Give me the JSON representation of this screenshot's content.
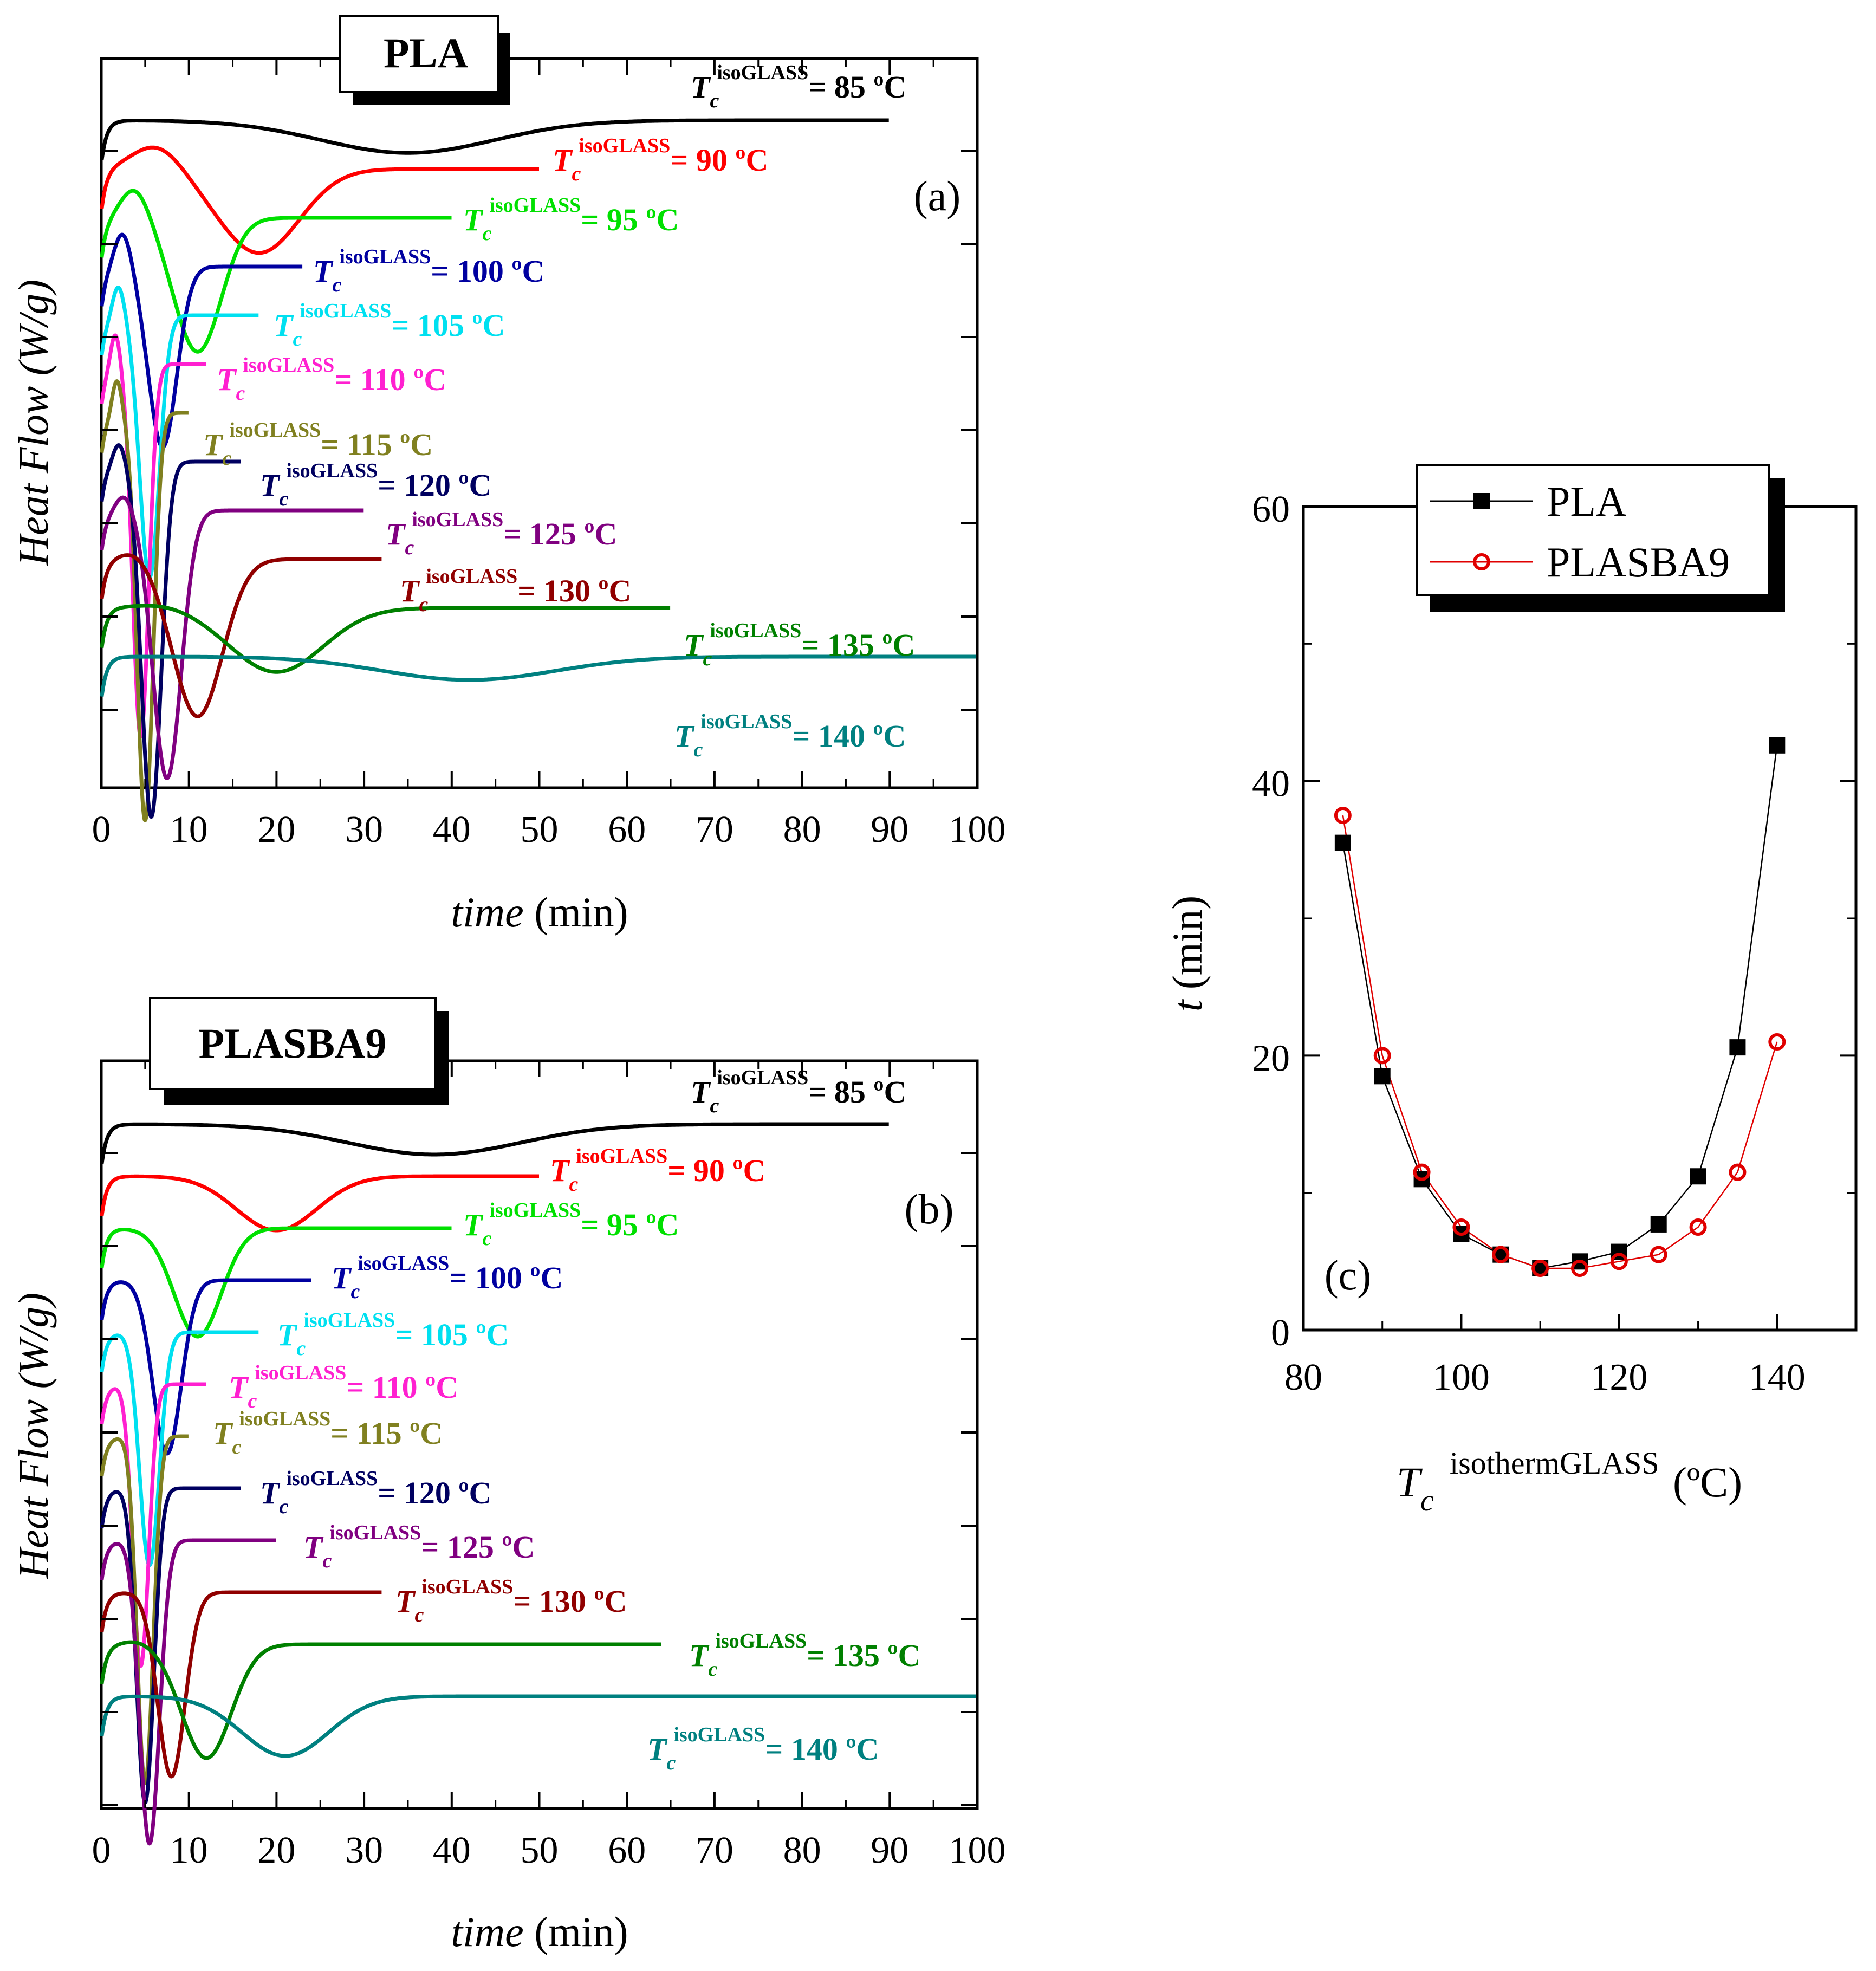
{
  "figure": {
    "panel_a": {
      "title": "PLA",
      "letter": "(a)",
      "xlabel_italic": "time",
      "xlabel_unit": " (min)",
      "ylabel": "Heat Flow (W/g)",
      "x_ticks": [
        "0",
        "10",
        "20",
        "30",
        "40",
        "50",
        "60",
        "70",
        "80",
        "90",
        "100"
      ]
    },
    "panel_b": {
      "title": "PLASBA9",
      "letter": "(b)",
      "xlabel_italic": "time",
      "xlabel_unit": " (min)",
      "ylabel": "Heat Flow (W/g)",
      "x_ticks": [
        "0",
        "10",
        "20",
        "30",
        "40",
        "50",
        "60",
        "70",
        "80",
        "90",
        "100"
      ]
    },
    "panel_c": {
      "letter": "(c)",
      "ylabel_italic": "t",
      "ylabel_unit": " (min)",
      "xlabel_main": "T",
      "xlabel_sub": "c",
      "xlabel_sup": "isothermGLASS",
      "xlabel_unit": " (ºC)",
      "x_ticks": [
        "80",
        "100",
        "120",
        "140"
      ],
      "y_ticks": [
        "0",
        "20",
        "40",
        "60"
      ]
    },
    "curve_label_parts": {
      "symbol": "T",
      "sub": "c",
      "sup": "isoGLASS",
      "eq": "= "
    }
  },
  "chart_data": [
    {
      "type": "line",
      "panel": "a",
      "title": "PLA",
      "xlabel": "time (min)",
      "ylabel": "Heat Flow (W/g)",
      "xlim": [
        0,
        100
      ],
      "series": [
        {
          "name": "85 ºC",
          "color": "#000000",
          "label": "85 ºC",
          "tmax": 90,
          "tmin": 35,
          "depth": 0.28,
          "width": 14,
          "peak": 0
        },
        {
          "name": "90 ºC",
          "color": "#ff0000",
          "label": "90 ºC",
          "tmax": 50,
          "tmin": 18,
          "depth": 0.72,
          "width": 6.5,
          "peak": 0.6
        },
        {
          "name": "95 ºC",
          "color": "#00e000",
          "label": "95 ºC",
          "tmax": 40,
          "tmin": 11,
          "depth": 1.15,
          "width": 3.8,
          "peak": 0.75
        },
        {
          "name": "100 ºC",
          "color": "#0000a0",
          "label": "100 ºC",
          "tmax": 23,
          "tmin": 7,
          "depth": 1.55,
          "width": 2.3,
          "peak": 0.9
        },
        {
          "name": "105 ºC",
          "color": "#00e0f0",
          "label": "105 ºC",
          "tmax": 18,
          "tmin": 5.5,
          "depth": 2.25,
          "width": 1.6,
          "peak": 0.8
        },
        {
          "name": "110 ºC",
          "color": "#ff20d0",
          "label": "110 ºC",
          "tmax": 12,
          "tmin": 4.5,
          "depth": 3.2,
          "width": 1.3,
          "peak": 0.9
        },
        {
          "name": "115 ºC",
          "color": "#808020",
          "label": "115 ºC",
          "tmax": 10,
          "tmin": 5,
          "depth": 3.5,
          "width": 1.3,
          "peak": 0.9
        },
        {
          "name": "120 ºC",
          "color": "#000060",
          "label": "120 ºC",
          "tmax": 16,
          "tmin": 5.7,
          "depth": 3.05,
          "width": 1.6,
          "peak": 0.5
        },
        {
          "name": "125 ºC",
          "color": "#800080",
          "label": "125 ºC",
          "tmax": 30,
          "tmin": 7.5,
          "depth": 2.3,
          "width": 2.3,
          "peak": 0.4
        },
        {
          "name": "130 ºC",
          "color": "#900000",
          "label": "130 ºC",
          "tmax": 32,
          "tmin": 11,
          "depth": 1.35,
          "width": 4,
          "peak": 0.2
        },
        {
          "name": "135 ºC",
          "color": "#008000",
          "label": "135 ºC",
          "tmax": 65,
          "tmin": 20,
          "depth": 0.55,
          "width": 7.5,
          "peak": 0.1
        },
        {
          "name": "140 ºC",
          "color": "#008080",
          "label": "140 ºC",
          "tmax": 100,
          "tmin": 42,
          "depth": 0.2,
          "width": 14,
          "peak": 0
        }
      ]
    },
    {
      "type": "line",
      "panel": "b",
      "title": "PLASBA9",
      "xlabel": "time (min)",
      "ylabel": "Heat Flow (W/g)",
      "xlim": [
        0,
        100
      ],
      "series": [
        {
          "name": "85 ºC",
          "color": "#000000",
          "label": "85 ºC",
          "tmax": 90,
          "tmin": 38,
          "depth": 0.28,
          "width": 14,
          "peak": 0
        },
        {
          "name": "90 ºC",
          "color": "#ff0000",
          "label": "90 ºC",
          "tmax": 50,
          "tmin": 20,
          "depth": 0.5,
          "width": 6.5,
          "peak": 0
        },
        {
          "name": "95 ºC",
          "color": "#00e000",
          "label": "95 ºC",
          "tmax": 40,
          "tmin": 11,
          "depth": 1.0,
          "width": 3.8,
          "peak": 0
        },
        {
          "name": "100 ºC",
          "color": "#0000a0",
          "label": "100 ºC",
          "tmax": 24,
          "tmin": 7.5,
          "depth": 1.6,
          "width": 2.3,
          "peak": 0
        },
        {
          "name": "105 ºC",
          "color": "#00e0f0",
          "label": "105 ºC",
          "tmax": 18,
          "tmin": 5.5,
          "depth": 2.15,
          "width": 1.6,
          "peak": 0
        },
        {
          "name": "110 ºC",
          "color": "#ff20d0",
          "label": "110 ºC",
          "tmax": 12,
          "tmin": 4.5,
          "depth": 2.6,
          "width": 1.3,
          "peak": 0
        },
        {
          "name": "115 ºC",
          "color": "#808020",
          "label": "115 ºC",
          "tmax": 10,
          "tmin": 5,
          "depth": 3.2,
          "width": 1.3,
          "peak": 0
        },
        {
          "name": "120 ºC",
          "color": "#000060",
          "label": "120 ºC",
          "tmax": 16,
          "tmin": 5,
          "depth": 2.9,
          "width": 1.4,
          "peak": 0
        },
        {
          "name": "125 ºC",
          "color": "#800080",
          "label": "125 ºC",
          "tmax": 20,
          "tmin": 5.5,
          "depth": 2.8,
          "width": 1.6,
          "peak": 0
        },
        {
          "name": "130 ºC",
          "color": "#900000",
          "label": "130 ºC",
          "tmax": 32,
          "tmin": 8,
          "depth": 1.7,
          "width": 2.2,
          "peak": 0
        },
        {
          "name": "135 ºC",
          "color": "#008000",
          "label": "135 ºC",
          "tmax": 64,
          "tmin": 12,
          "depth": 1.05,
          "width": 4,
          "peak": 0.1
        },
        {
          "name": "140 ºC",
          "color": "#008080",
          "label": "140 ºC",
          "tmax": 100,
          "tmin": 21,
          "depth": 0.55,
          "width": 7,
          "peak": 0
        }
      ]
    },
    {
      "type": "line",
      "panel": "c",
      "xlabel": "Tc isothermGLASS (ºC)",
      "ylabel": "t (min)",
      "xlim": [
        80,
        150
      ],
      "ylim": [
        0,
        60
      ],
      "legend": "top-right",
      "x": [
        85,
        90,
        95,
        100,
        105,
        110,
        115,
        120,
        125,
        130,
        135,
        140
      ],
      "series": [
        {
          "name": "PLA",
          "color": "#000000",
          "marker": "filled-square",
          "values": [
            35.5,
            18.5,
            11,
            7,
            5.5,
            4.5,
            5,
            5.7,
            7.7,
            11.2,
            20.6,
            42.6
          ]
        },
        {
          "name": "PLASBA9",
          "color": "#e00000",
          "marker": "open-circle",
          "values": [
            37.5,
            20,
            11.5,
            7.5,
            5.5,
            4.5,
            4.5,
            5,
            5.5,
            7.5,
            11.5,
            21
          ]
        }
      ]
    }
  ]
}
